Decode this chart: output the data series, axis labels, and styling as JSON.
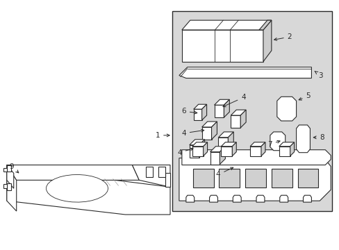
{
  "fig_width": 4.89,
  "fig_height": 3.6,
  "dpi": 100,
  "bg_color": "#ffffff",
  "line_color": "#2a2a2a",
  "box_bg": "#d8d8d8",
  "white": "#ffffff",
  "gray_light": "#cccccc",
  "gray_mid": "#aaaaaa"
}
